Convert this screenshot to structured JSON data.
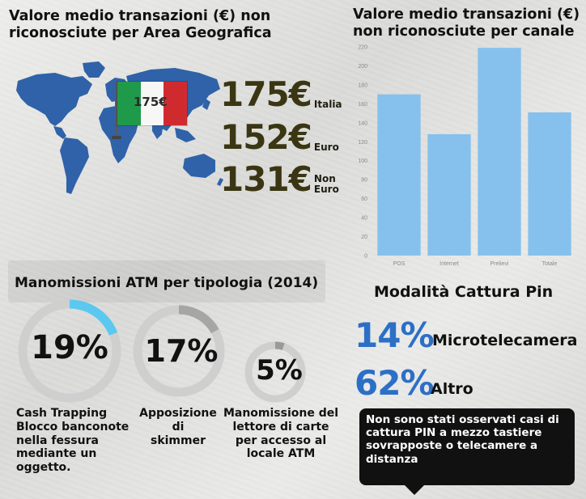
{
  "geo": {
    "title_line1": "Valore medio transazioni (€) non",
    "title_line2": "riconosciute per Area Geografica",
    "flag_value": "175€",
    "values": [
      {
        "value": "175€",
        "label_line1": "Italia",
        "label_line2": ""
      },
      {
        "value": "152€",
        "label_line1": "Euro",
        "label_line2": ""
      },
      {
        "value": "131€",
        "label_line1": "Non",
        "label_line2": "Euro"
      }
    ]
  },
  "channel": {
    "title_line1": "Valore medio transazioni (€)",
    "title_line2": "non riconosciute per canale"
  },
  "chart_data": {
    "type": "bar",
    "categories": [
      "POS",
      "Internet",
      "Prelievi",
      "Totale"
    ],
    "values": [
      170,
      128,
      219,
      151
    ],
    "ylim": [
      0,
      220
    ],
    "yticks": [
      0,
      20,
      40,
      60,
      80,
      100,
      120,
      140,
      160,
      180,
      200,
      220
    ],
    "grid": false,
    "bar_color": "#85c1ec",
    "title": "",
    "xlabel": "",
    "ylabel": ""
  },
  "atm": {
    "title": "Manomissioni ATM per tipologia (2014)",
    "items": [
      {
        "percent": 19,
        "label": "19%",
        "caption": [
          "Cash Trapping",
          "Blocco banconote",
          "nella fessura",
          "mediante un",
          "oggetto."
        ],
        "color": "#5bc8ef"
      },
      {
        "percent": 17,
        "label": "17%",
        "caption": [
          "Apposizione",
          "di",
          "skimmer"
        ],
        "color": "#a6a6a6"
      },
      {
        "percent": 5,
        "label": "5%",
        "caption": [
          "Manomissione del",
          "lettore di carte",
          "per accesso al",
          "locale ATM"
        ],
        "color": "#9a9a9a"
      }
    ]
  },
  "pin": {
    "title": "Modalità Cattura Pin",
    "items": [
      {
        "value": "14%",
        "label": "Microtelecamera"
      },
      {
        "value": "62%",
        "label": "Altro"
      }
    ],
    "note": [
      "Non sono stati osservati casi di",
      "cattura PIN a mezzo tastiere",
      "sovrapposte o telecamere a",
      "distanza"
    ]
  },
  "colors": {
    "accent_blue": "#2c6fc6",
    "map_blue": "#2f62a8",
    "ring_track": "#cfcfcf"
  }
}
